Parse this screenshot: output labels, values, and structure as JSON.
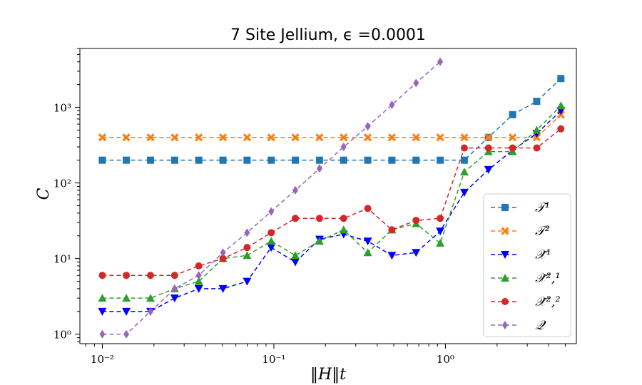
{
  "chart_data": {
    "type": "line",
    "title": "7 Site Jellium, ϵ =0.0001",
    "xlabel": "‖H‖t",
    "ylabel": "C",
    "xscale": "log",
    "yscale": "log",
    "xlim": [
      0.0074,
      5.8
    ],
    "ylim": [
      0.75,
      6000
    ],
    "grid": false,
    "legend_position": "lower-right",
    "x_ticks": [
      "10⁻²",
      "10⁻¹",
      "10⁰"
    ],
    "y_ticks": [
      "10⁰",
      "10¹",
      "10²",
      "10³"
    ],
    "x": [
      0.01,
      0.0138,
      0.0191,
      0.0264,
      0.0365,
      0.0505,
      0.0698,
      0.0965,
      0.1334,
      0.1845,
      0.2551,
      0.3527,
      0.4877,
      0.6743,
      0.9323,
      1.289,
      1.782,
      2.464,
      3.407,
      4.711
    ],
    "series": [
      {
        "name": "𝒯¹",
        "color": "#1f77b4",
        "marker": "square",
        "values": [
          200,
          200,
          200,
          200,
          200,
          200,
          200,
          200,
          200,
          200,
          200,
          200,
          200,
          200,
          200,
          200,
          400,
          800,
          1200,
          2400
        ]
      },
      {
        "name": "𝒯²",
        "color": "#ff7f0e",
        "marker": "x",
        "values": [
          400,
          400,
          400,
          400,
          400,
          400,
          400,
          400,
          400,
          400,
          400,
          400,
          400,
          400,
          400,
          400,
          400,
          400,
          400,
          800
        ]
      },
      {
        "name": "𝒳̃¹",
        "color": "#0000ff",
        "marker": "triangle-down",
        "values": [
          2,
          2,
          2,
          3,
          4,
          4,
          5,
          14,
          9,
          18,
          21,
          17,
          11,
          12,
          23,
          75,
          150,
          270,
          450,
          900
        ]
      },
      {
        "name": "𝒳̃²,¹",
        "color": "#2ca02c",
        "marker": "triangle-up",
        "values": [
          3,
          3,
          3,
          4,
          5,
          10,
          11,
          17,
          11,
          17,
          24,
          12,
          24,
          29,
          16,
          140,
          260,
          260,
          500,
          1050
        ]
      },
      {
        "name": "𝒳̃²,²",
        "color": "#d62728",
        "marker": "circle",
        "values": [
          6,
          6,
          6,
          6,
          8,
          10,
          14,
          22,
          34,
          34,
          34,
          46,
          24,
          32,
          34,
          290,
          290,
          290,
          290,
          520
        ]
      },
      {
        "name": "𝒬",
        "color": "#9467bd",
        "marker": "diamond",
        "values": [
          1,
          1,
          2,
          4,
          6,
          12,
          22,
          42,
          80,
          155,
          300,
          560,
          1080,
          2100,
          4000,
          null,
          null,
          null,
          null,
          null
        ]
      }
    ]
  }
}
